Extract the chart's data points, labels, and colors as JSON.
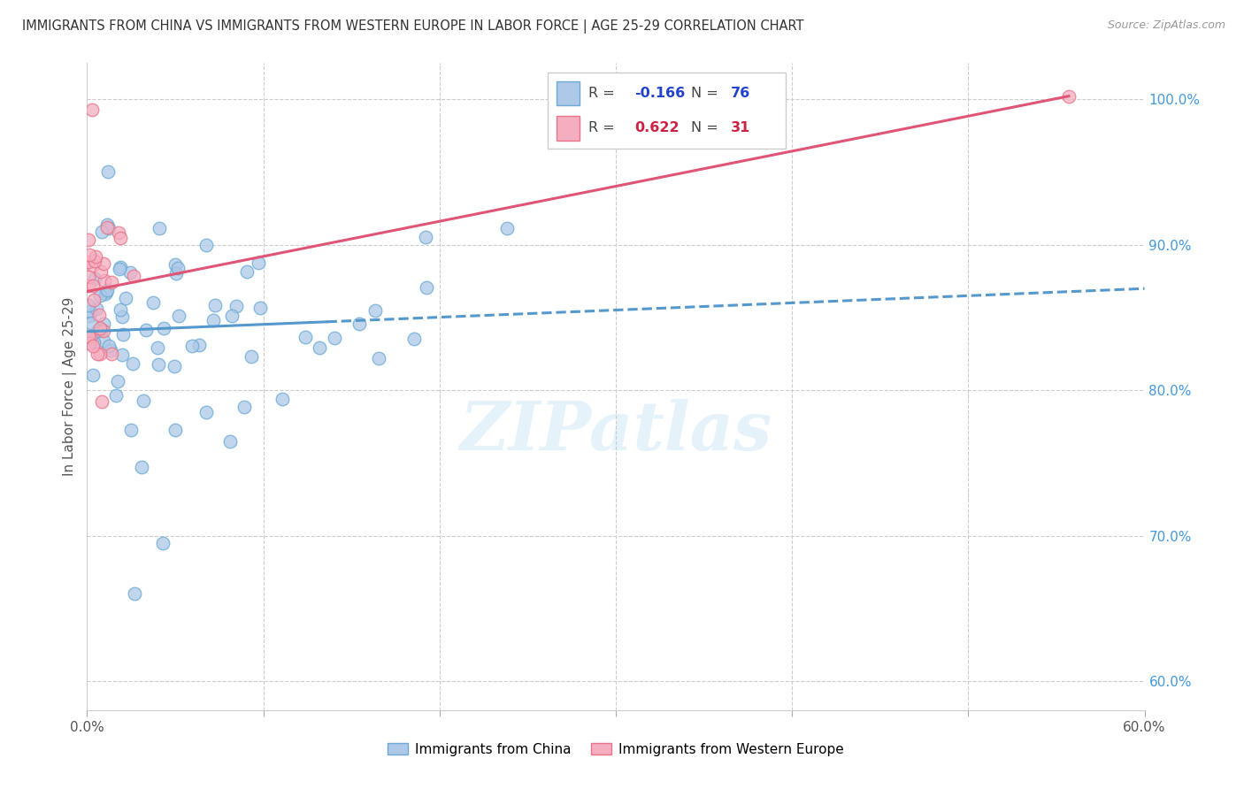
{
  "title": "IMMIGRANTS FROM CHINA VS IMMIGRANTS FROM WESTERN EUROPE IN LABOR FORCE | AGE 25-29 CORRELATION CHART",
  "source": "Source: ZipAtlas.com",
  "ylabel": "In Labor Force | Age 25-29",
  "xlim": [
    0.0,
    0.6
  ],
  "ylim": [
    0.58,
    1.025
  ],
  "china_R": -0.166,
  "china_N": 76,
  "western_R": 0.622,
  "western_N": 31,
  "china_color": "#adc8e8",
  "western_color": "#f5aec0",
  "china_edge_color": "#6aaad4",
  "western_edge_color": "#e8748a",
  "china_line_color": "#5599cc",
  "western_line_color": "#e05575",
  "legend_r_china_color": "#2244cc",
  "legend_r_western_color": "#cc2244",
  "watermark": "ZIPatlas",
  "background_color": "#ffffff",
  "grid_color": "#cccccc",
  "title_color": "#333333",
  "source_color": "#999999",
  "axis_color": "#4499dd",
  "tick_label_color": "#4499dd",
  "bottom_legend_china": "Immigrants from China",
  "bottom_legend_western": "Immigrants from Western Europe"
}
